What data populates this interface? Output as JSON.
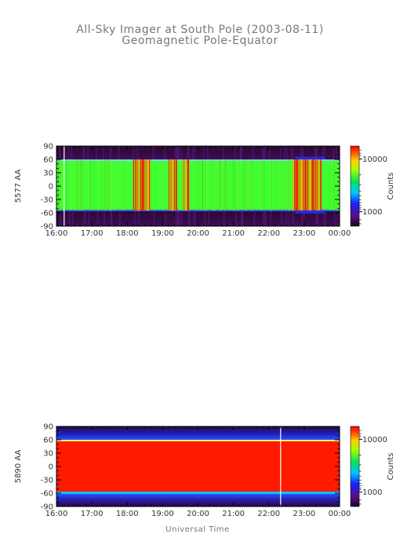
{
  "title": "All-Sky Imager at South Pole (2003-08-11)",
  "subtitle": "Geomagnetic Pole-Equator",
  "xlabel": "Universal Time",
  "colorbar_label": "Counts",
  "chart_data": [
    {
      "type": "heatmap",
      "ylabel": "5577 AA",
      "x_ticks": [
        "16:00",
        "17:00",
        "18:00",
        "19:00",
        "20:00",
        "21:00",
        "22:00",
        "23:00",
        "00:00"
      ],
      "y_ticks": [
        90,
        60,
        30,
        0,
        -30,
        -60,
        -90
      ],
      "ylim": [
        -90,
        90
      ],
      "colorbar_ticks": [
        "10000",
        "1000"
      ],
      "description_bands": [
        {
          "from": 60,
          "to": 90,
          "level": "low"
        },
        {
          "from": -55,
          "to": 60,
          "level": "mid"
        },
        {
          "from": -90,
          "to": -55,
          "level": "low"
        }
      ],
      "bright_spans_ut": [
        [
          "18:10",
          "18:40"
        ],
        [
          "19:10",
          "19:25"
        ],
        [
          "19:35",
          "19:45"
        ],
        [
          "22:40",
          "23:30"
        ]
      ],
      "white_marker_ut": "16:13"
    },
    {
      "type": "heatmap",
      "ylabel": "5890 AA",
      "x_ticks": [
        "16:00",
        "17:00",
        "18:00",
        "19:00",
        "20:00",
        "21:00",
        "22:00",
        "23:00",
        "00:00"
      ],
      "y_ticks": [
        90,
        60,
        30,
        0,
        -30,
        -60,
        -90
      ],
      "ylim": [
        -90,
        90
      ],
      "colorbar_ticks": [
        "10000",
        "1000"
      ],
      "description_bands": [
        {
          "from": 62,
          "to": 90,
          "level": "low"
        },
        {
          "from": -55,
          "to": 62,
          "level": "high"
        },
        {
          "from": -90,
          "to": -55,
          "level": "low"
        }
      ],
      "white_marker_ut": "22:20"
    }
  ]
}
